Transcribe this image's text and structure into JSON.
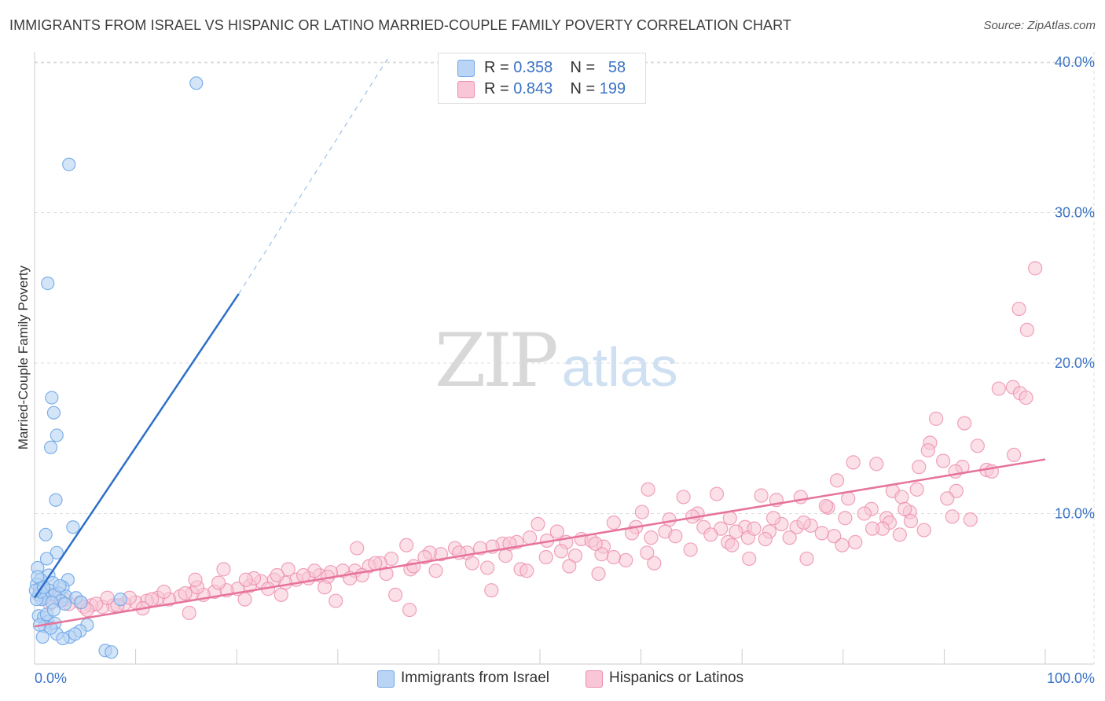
{
  "title": "IMMIGRANTS FROM ISRAEL VS HISPANIC OR LATINO MARRIED-COUPLE FAMILY POVERTY CORRELATION CHART",
  "source": "Source: ZipAtlas.com",
  "watermark": {
    "part1": "ZIP",
    "part2": "atlas"
  },
  "legend": {
    "rows": [
      {
        "r_label": "R = ",
        "r_value": "0.358",
        "n_label": "N = ",
        "n_value": "58"
      },
      {
        "r_label": "R = ",
        "r_value": "0.843",
        "n_label": "N = ",
        "n_value": "199"
      }
    ]
  },
  "colors": {
    "blue": "#6fa8e8",
    "blue_fill": "#b9d4f4",
    "blue_line": "#2f6fc8",
    "pink": "#ec8cab",
    "pink_fill": "#f8c6d6",
    "pink_line": "#e6739b",
    "tick": "#3a73c4",
    "grid": "#dddddd"
  },
  "chart_data": {
    "type": "scatter",
    "title": "IMMIGRANTS FROM ISRAEL VS HISPANIC OR LATINO MARRIED-COUPLE FAMILY POVERTY CORRELATION CHART",
    "xlabel": "",
    "ylabel": "Married-Couple Family Poverty",
    "xlim": [
      0,
      100
    ],
    "ylim": [
      0,
      41
    ],
    "x_tick_labels": [
      "0.0%",
      "100.0%"
    ],
    "y_ticks": [
      10,
      20,
      30,
      40
    ],
    "y_tick_labels": [
      "10.0%",
      "20.0%",
      "30.0%",
      "40.0%"
    ],
    "grid": true,
    "legend_position": "top-center",
    "series": [
      {
        "name": "Immigrants from Israel",
        "R": 0.358,
        "N": 58,
        "trend": {
          "x0": 0,
          "y0": 4.4,
          "x1": 20.2,
          "y1": 24.6,
          "x_dash_end": 35,
          "y_dash_end": 40.3
        },
        "points": [
          [
            16.0,
            38.6
          ],
          [
            3.4,
            33.2
          ],
          [
            1.3,
            25.3
          ],
          [
            1.7,
            17.7
          ],
          [
            1.9,
            16.7
          ],
          [
            2.2,
            15.2
          ],
          [
            1.6,
            14.4
          ],
          [
            2.1,
            10.9
          ],
          [
            3.8,
            9.1
          ],
          [
            1.1,
            8.6
          ],
          [
            2.2,
            7.4
          ],
          [
            1.2,
            7.0
          ],
          [
            0.3,
            6.4
          ],
          [
            1.4,
            5.9
          ],
          [
            3.3,
            5.6
          ],
          [
            0.6,
            5.6
          ],
          [
            0.2,
            5.3
          ],
          [
            1.8,
            5.4
          ],
          [
            2.8,
            5.1
          ],
          [
            0.5,
            5.0
          ],
          [
            1.5,
            4.9
          ],
          [
            0.8,
            4.7
          ],
          [
            2.4,
            4.7
          ],
          [
            0.4,
            4.6
          ],
          [
            3.1,
            4.5
          ],
          [
            2.0,
            4.6
          ],
          [
            1.0,
            4.4
          ],
          [
            0.7,
            4.3
          ],
          [
            4.1,
            4.4
          ],
          [
            0.2,
            4.3
          ],
          [
            2.6,
            4.2
          ],
          [
            1.7,
            4.1
          ],
          [
            8.5,
            4.3
          ],
          [
            0.4,
            3.2
          ],
          [
            0.9,
            3.1
          ],
          [
            1.3,
            2.8
          ],
          [
            2.0,
            2.7
          ],
          [
            1.0,
            2.5
          ],
          [
            5.2,
            2.6
          ],
          [
            4.5,
            2.2
          ],
          [
            2.2,
            2.0
          ],
          [
            0.8,
            1.8
          ],
          [
            3.5,
            1.8
          ],
          [
            4.0,
            2.0
          ],
          [
            7.0,
            0.9
          ],
          [
            7.6,
            0.8
          ],
          [
            0.3,
            5.8
          ],
          [
            0.6,
            4.8
          ],
          [
            2.5,
            5.2
          ],
          [
            1.2,
            3.3
          ],
          [
            3.0,
            4.0
          ],
          [
            0.1,
            4.9
          ],
          [
            0.9,
            5.1
          ],
          [
            1.6,
            2.4
          ],
          [
            2.8,
            1.7
          ],
          [
            4.6,
            4.1
          ],
          [
            0.5,
            2.6
          ],
          [
            1.9,
            3.6
          ]
        ]
      },
      {
        "name": "Hispanics or Latinos",
        "R": 0.843,
        "N": 199,
        "trend": {
          "x0": 0,
          "y0": 2.5,
          "x1": 100,
          "y1": 13.6
        },
        "points": [
          [
            99.0,
            26.3
          ],
          [
            97.4,
            23.6
          ],
          [
            98.2,
            22.2
          ],
          [
            95.4,
            18.3
          ],
          [
            96.8,
            18.4
          ],
          [
            97.5,
            18.0
          ],
          [
            98.1,
            17.7
          ],
          [
            89.2,
            16.3
          ],
          [
            92.0,
            16.0
          ],
          [
            88.6,
            14.7
          ],
          [
            93.3,
            14.5
          ],
          [
            96.9,
            13.9
          ],
          [
            88.4,
            14.2
          ],
          [
            81.0,
            13.4
          ],
          [
            83.3,
            13.3
          ],
          [
            87.5,
            13.1
          ],
          [
            91.8,
            13.1
          ],
          [
            91.1,
            12.8
          ],
          [
            94.2,
            12.9
          ],
          [
            94.7,
            12.8
          ],
          [
            79.4,
            12.2
          ],
          [
            91.2,
            11.5
          ],
          [
            84.9,
            11.5
          ],
          [
            85.8,
            11.1
          ],
          [
            75.8,
            11.1
          ],
          [
            80.5,
            11.0
          ],
          [
            73.4,
            10.9
          ],
          [
            90.3,
            11.0
          ],
          [
            71.9,
            11.2
          ],
          [
            78.5,
            10.4
          ],
          [
            82.8,
            10.3
          ],
          [
            86.6,
            10.1
          ],
          [
            67.5,
            11.3
          ],
          [
            64.2,
            11.1
          ],
          [
            60.7,
            11.6
          ],
          [
            84.3,
            9.7
          ],
          [
            92.6,
            9.6
          ],
          [
            84.6,
            9.4
          ],
          [
            76.8,
            9.2
          ],
          [
            68.8,
            9.7
          ],
          [
            73.9,
            9.3
          ],
          [
            75.4,
            9.1
          ],
          [
            70.3,
            9.1
          ],
          [
            66.2,
            9.1
          ],
          [
            67.9,
            9.0
          ],
          [
            65.6,
            10.0
          ],
          [
            62.8,
            9.6
          ],
          [
            72.7,
            8.8
          ],
          [
            70.6,
            8.4
          ],
          [
            68.6,
            8.1
          ],
          [
            79.1,
            8.5
          ],
          [
            88.0,
            8.9
          ],
          [
            61.0,
            8.4
          ],
          [
            62.4,
            8.8
          ],
          [
            59.5,
            9.1
          ],
          [
            57.3,
            9.4
          ],
          [
            56.3,
            7.8
          ],
          [
            54.1,
            8.3
          ],
          [
            55.1,
            8.2
          ],
          [
            52.6,
            8.1
          ],
          [
            51.7,
            8.8
          ],
          [
            50.7,
            8.2
          ],
          [
            49.0,
            8.4
          ],
          [
            47.7,
            8.1
          ],
          [
            46.3,
            8.0
          ],
          [
            45.3,
            7.8
          ],
          [
            44.1,
            7.7
          ],
          [
            42.8,
            7.4
          ],
          [
            41.6,
            7.7
          ],
          [
            40.2,
            7.3
          ],
          [
            39.1,
            7.4
          ],
          [
            36.8,
            7.9
          ],
          [
            35.3,
            7.0
          ],
          [
            34.2,
            6.7
          ],
          [
            33.1,
            6.5
          ],
          [
            31.7,
            6.2
          ],
          [
            30.5,
            6.2
          ],
          [
            29.3,
            6.1
          ],
          [
            28.2,
            5.9
          ],
          [
            27.1,
            5.7
          ],
          [
            25.9,
            5.6
          ],
          [
            24.8,
            5.4
          ],
          [
            23.7,
            5.6
          ],
          [
            22.4,
            5.5
          ],
          [
            21.3,
            5.2
          ],
          [
            20.1,
            5.0
          ],
          [
            19.0,
            4.9
          ],
          [
            17.8,
            4.8
          ],
          [
            16.7,
            4.6
          ],
          [
            15.6,
            4.7
          ],
          [
            14.4,
            4.5
          ],
          [
            13.3,
            4.3
          ],
          [
            12.2,
            4.4
          ],
          [
            11.1,
            4.2
          ],
          [
            10.0,
            4.1
          ],
          [
            8.9,
            4.0
          ],
          [
            7.8,
            3.9
          ],
          [
            6.7,
            3.8
          ],
          [
            5.6,
            3.9
          ],
          [
            4.5,
            4.1
          ],
          [
            3.4,
            4.0
          ],
          [
            2.5,
            4.2
          ],
          [
            1.8,
            4.6
          ],
          [
            58.5,
            6.9
          ],
          [
            56.1,
            7.3
          ],
          [
            53.5,
            7.2
          ],
          [
            50.6,
            7.1
          ],
          [
            48.1,
            6.3
          ],
          [
            46.6,
            7.2
          ],
          [
            43.3,
            6.7
          ],
          [
            38.6,
            7.1
          ],
          [
            37.2,
            6.3
          ],
          [
            34.8,
            6.0
          ],
          [
            32.4,
            5.9
          ],
          [
            31.2,
            5.7
          ],
          [
            29.0,
            5.8
          ],
          [
            27.7,
            6.2
          ],
          [
            25.1,
            6.3
          ],
          [
            24.0,
            5.9
          ],
          [
            21.7,
            5.7
          ],
          [
            20.9,
            5.6
          ],
          [
            18.2,
            5.4
          ],
          [
            16.1,
            5.1
          ],
          [
            14.9,
            4.7
          ],
          [
            12.8,
            4.8
          ],
          [
            11.6,
            4.3
          ],
          [
            9.4,
            4.4
          ],
          [
            8.2,
            3.9
          ],
          [
            6.1,
            4.0
          ],
          [
            4.9,
            3.8
          ],
          [
            3.0,
            4.3
          ],
          [
            2.2,
            4.4
          ],
          [
            1.5,
            4.0
          ],
          [
            31.9,
            7.7
          ],
          [
            37.5,
            6.5
          ],
          [
            42.0,
            7.4
          ],
          [
            47.0,
            8.0
          ],
          [
            52.1,
            7.5
          ],
          [
            55.5,
            8.0
          ],
          [
            59.1,
            8.7
          ],
          [
            63.4,
            8.5
          ],
          [
            66.9,
            8.6
          ],
          [
            69.4,
            8.8
          ],
          [
            71.2,
            9.0
          ],
          [
            74.7,
            8.4
          ],
          [
            77.9,
            8.7
          ],
          [
            80.2,
            9.7
          ],
          [
            82.1,
            10.0
          ],
          [
            83.9,
            9.0
          ],
          [
            86.1,
            10.3
          ],
          [
            87.3,
            11.6
          ],
          [
            78.3,
            10.5
          ],
          [
            76.1,
            9.4
          ],
          [
            89.9,
            13.5
          ],
          [
            45.2,
            4.9
          ],
          [
            37.1,
            3.6
          ],
          [
            35.7,
            4.6
          ],
          [
            29.8,
            4.2
          ],
          [
            24.4,
            4.6
          ],
          [
            20.8,
            4.3
          ],
          [
            15.3,
            3.4
          ],
          [
            10.7,
            3.7
          ],
          [
            7.2,
            4.4
          ],
          [
            5.2,
            3.6
          ],
          [
            55.8,
            6.0
          ],
          [
            61.3,
            6.7
          ],
          [
            70.7,
            7.0
          ],
          [
            76.4,
            7.0
          ],
          [
            81.2,
            8.1
          ],
          [
            85.6,
            8.6
          ],
          [
            90.8,
            9.8
          ],
          [
            49.8,
            9.3
          ],
          [
            60.1,
            10.1
          ],
          [
            65.1,
            9.8
          ],
          [
            73.1,
            9.7
          ],
          [
            18.7,
            6.3
          ],
          [
            28.7,
            5.1
          ],
          [
            33.7,
            6.7
          ],
          [
            39.7,
            6.2
          ],
          [
            44.8,
            6.4
          ],
          [
            48.7,
            6.2
          ],
          [
            52.9,
            6.5
          ],
          [
            57.3,
            7.1
          ],
          [
            60.6,
            7.4
          ],
          [
            64.9,
            7.6
          ],
          [
            69.0,
            7.9
          ],
          [
            72.3,
            8.3
          ],
          [
            79.9,
            7.9
          ],
          [
            82.9,
            9.0
          ],
          [
            86.7,
            9.5
          ],
          [
            15.9,
            5.6
          ],
          [
            23.1,
            5.0
          ],
          [
            26.6,
            5.9
          ]
        ]
      }
    ]
  },
  "bottom_legend": [
    "Immigrants from Israel",
    "Hispanics or Latinos"
  ]
}
